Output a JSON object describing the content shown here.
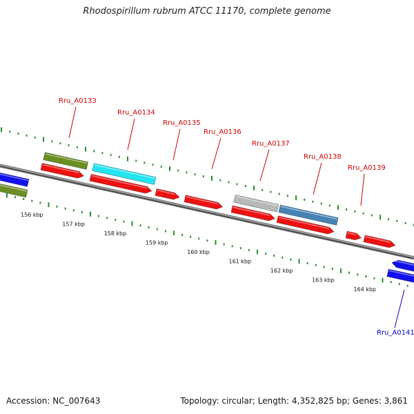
{
  "title": "Rhodospirillum rubrum ATCC 11170, complete genome",
  "footer": {
    "accession_label": "Accession: NC_007643",
    "topology_label": "Topology: circular; Length: 4,352,825 bp; Genes: 3,861"
  },
  "colors": {
    "backbone": "#777777",
    "tick": "#2e8b2e",
    "label_red": "#cc0000",
    "label_blue": "#0000cc",
    "olive": "#6b8e23",
    "cyan": "#22e5f0",
    "red": "#ee1111",
    "grey": "#b8b8b8",
    "steelblue": "#4682b4",
    "blue": "#1111ee"
  },
  "kbp_ticks": [
    "156 kbp",
    "157 kbp",
    "158 kbp",
    "159 kbp",
    "160 kbp",
    "161 kbp",
    "162 kbp",
    "163 kbp",
    "164 kbp"
  ],
  "gene_labels": [
    {
      "name": "Rru_A0133",
      "color": "red"
    },
    {
      "name": "Rru_A0134",
      "color": "red"
    },
    {
      "name": "Rru_A0135",
      "color": "red"
    },
    {
      "name": "Rru_A0136",
      "color": "red"
    },
    {
      "name": "Rru_A0137",
      "color": "red"
    },
    {
      "name": "Rru_A0138",
      "color": "red"
    },
    {
      "name": "Rru_A0139",
      "color": "red"
    },
    {
      "name": "Rru_A0141",
      "color": "blue"
    }
  ]
}
